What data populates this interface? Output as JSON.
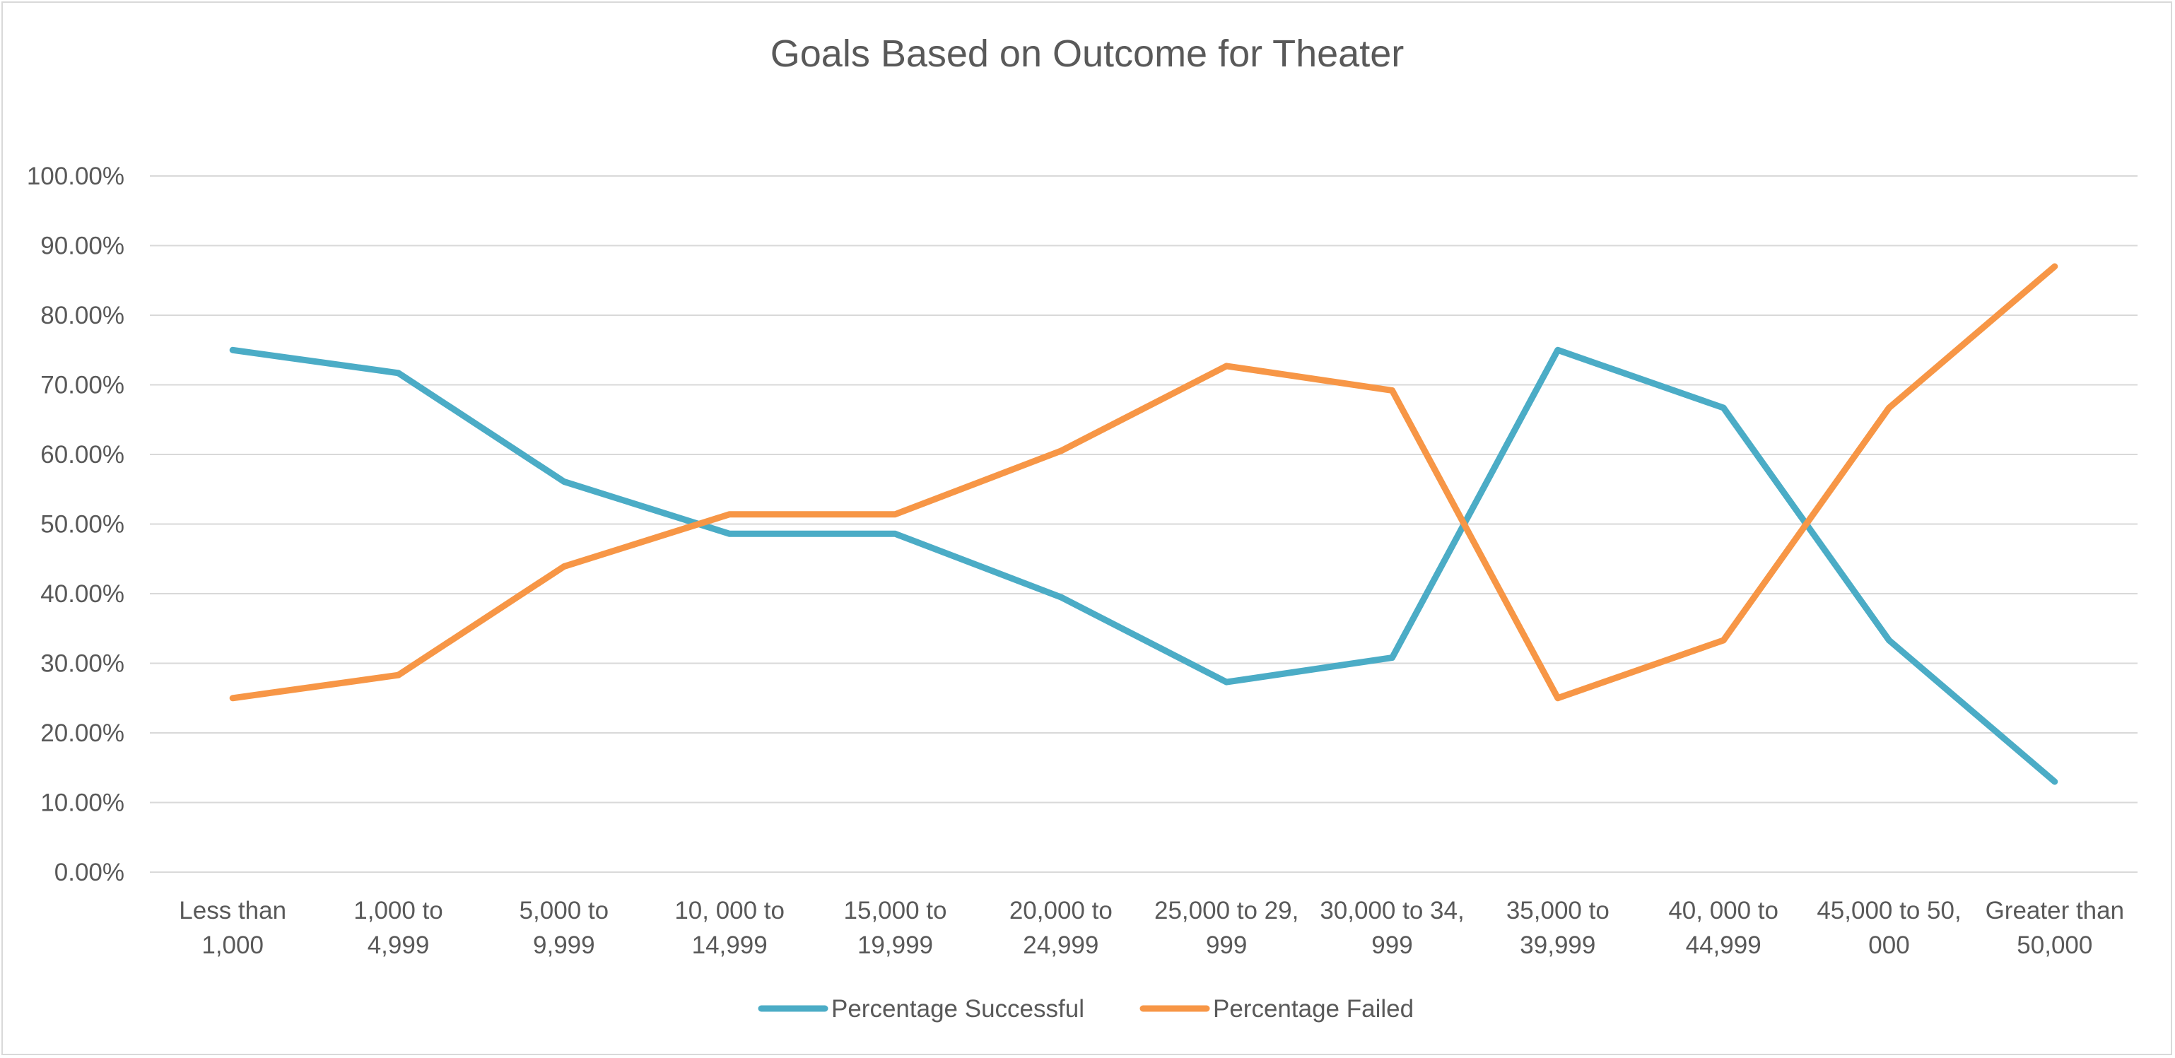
{
  "chart_data": {
    "type": "line",
    "title": "Goals Based on Outcome for Theater",
    "xlabel": "",
    "ylabel": "",
    "categories": [
      [
        "Less than",
        "1,000"
      ],
      [
        "1,000 to",
        "4,999"
      ],
      [
        "5,000 to",
        "9,999"
      ],
      [
        "10, 000 to",
        "14,999"
      ],
      [
        "15,000 to",
        "19,999"
      ],
      [
        "20,000 to",
        "24,999"
      ],
      [
        "25,000 to 29,",
        "999"
      ],
      [
        "30,000 to 34,",
        "999"
      ],
      [
        "35,000 to",
        "39,999"
      ],
      [
        "40, 000 to",
        "44,999"
      ],
      [
        "45,000 to 50,",
        "000"
      ],
      [
        "Greater than",
        "50,000"
      ]
    ],
    "y_ticks": [
      "0.00%",
      "10.00%",
      "20.00%",
      "30.00%",
      "40.00%",
      "50.00%",
      "60.00%",
      "70.00%",
      "80.00%",
      "90.00%",
      "100.00%"
    ],
    "ylim": [
      0,
      100
    ],
    "grid": true,
    "legend_position": "bottom",
    "series": [
      {
        "name": "Percentage Successful",
        "color": "#4bacc6",
        "values": [
          75.0,
          71.7,
          56.1,
          48.6,
          48.6,
          39.5,
          27.3,
          30.8,
          75.0,
          66.7,
          33.3,
          13.0
        ]
      },
      {
        "name": "Percentage Failed",
        "color": "#f79646",
        "values": [
          25.0,
          28.3,
          43.9,
          51.4,
          51.4,
          60.5,
          72.7,
          69.2,
          25.0,
          33.3,
          66.7,
          87.0
        ]
      }
    ]
  }
}
